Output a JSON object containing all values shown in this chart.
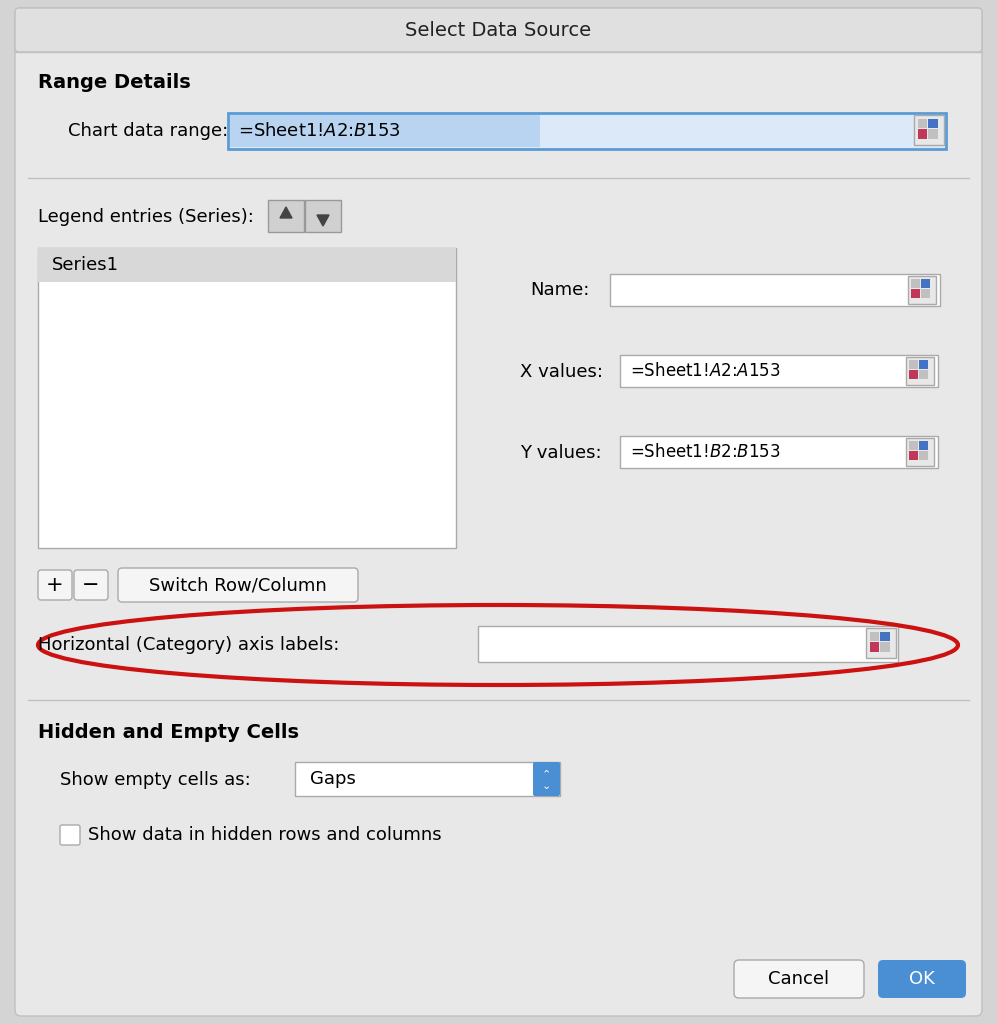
{
  "title": "Select Data Source",
  "bg_color": "#d4d4d4",
  "dialog_bg": "#e8e8e8",
  "title_bar_color": "#e0e0e0",
  "range_details_label": "Range Details",
  "chart_data_range_label": "Chart data range:",
  "chart_data_range_value": "=Sheet1!$A$2:$B$153",
  "legend_entries_label": "Legend entries (Series):",
  "series1_label": "Series1",
  "name_label": "Name:",
  "x_values_label": "X values:",
  "x_values_value": "=Sheet1!$A$2:$A$153",
  "y_values_label": "Y values:",
  "y_values_value": "=Sheet1!$B$2:$B$153",
  "switch_row_col_label": "Switch Row/Column",
  "horiz_axis_label": "Horizontal (Category) axis labels:",
  "hidden_empty_label": "Hidden and Empty Cells",
  "show_empty_label": "Show empty cells as:",
  "gaps_value": "Gaps",
  "show_hidden_label": "Show data in hidden rows and columns",
  "cancel_label": "Cancel",
  "ok_label": "OK",
  "input_bg": "#ffffff",
  "highlight_bg": "#dce9f8",
  "highlight_border": "#5b9bd5",
  "button_bg": "#f5f5f5",
  "ok_button_bg": "#4a8fd4",
  "ok_button_text": "#ffffff",
  "red_circle_color": "#cc1111",
  "series_header_bg": "#d8d8d8",
  "border_color": "#aaaaaa",
  "separator_color": "#c0c0c0",
  "text_color": "#000000",
  "arrow_bg": "#d0d0d0",
  "arrow_border": "#999999"
}
